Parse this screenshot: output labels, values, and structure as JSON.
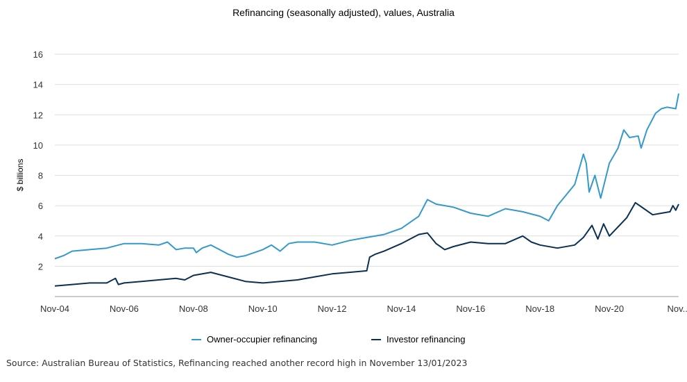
{
  "chart_data": {
    "type": "line",
    "title": "Refinancing (seasonally adjusted), values, Australia",
    "xlabel": "",
    "ylabel": "$ billions",
    "ylim": [
      0,
      16
    ],
    "yticks": [
      2,
      4,
      6,
      8,
      10,
      12,
      14,
      16
    ],
    "grid": true,
    "legend_position": "bottom",
    "x_tick_labels": [
      "Nov-04",
      "Nov-06",
      "Nov-08",
      "Nov-10",
      "Nov-12",
      "Nov-14",
      "Nov-16",
      "Nov-18",
      "Nov-20",
      "Nov..."
    ],
    "x_start": "Nov-04",
    "x_end": "Nov-22",
    "colors": {
      "owner": "#3399cc",
      "investor": "#0a2f52",
      "grid": "#dddddd",
      "axis": "#999999"
    },
    "series": [
      {
        "name": "Owner-occupier refinancing",
        "points": [
          [
            "Nov-04",
            2.5
          ],
          [
            "Feb-05",
            2.7
          ],
          [
            "May-05",
            3.0
          ],
          [
            "Nov-05",
            3.1
          ],
          [
            "May-06",
            3.2
          ],
          [
            "Nov-06",
            3.5
          ],
          [
            "May-07",
            3.5
          ],
          [
            "Nov-07",
            3.4
          ],
          [
            "Feb-08",
            3.6
          ],
          [
            "May-08",
            3.1
          ],
          [
            "Aug-08",
            3.2
          ],
          [
            "Nov-08",
            3.2
          ],
          [
            "Dec-08",
            2.9
          ],
          [
            "Feb-09",
            3.2
          ],
          [
            "May-09",
            3.4
          ],
          [
            "Nov-09",
            2.8
          ],
          [
            "Feb-10",
            2.6
          ],
          [
            "May-10",
            2.7
          ],
          [
            "Nov-10",
            3.1
          ],
          [
            "Feb-11",
            3.4
          ],
          [
            "May-11",
            3.0
          ],
          [
            "Aug-11",
            3.5
          ],
          [
            "Nov-11",
            3.6
          ],
          [
            "May-12",
            3.6
          ],
          [
            "Nov-12",
            3.4
          ],
          [
            "May-13",
            3.7
          ],
          [
            "Nov-13",
            3.9
          ],
          [
            "May-14",
            4.1
          ],
          [
            "Nov-14",
            4.5
          ],
          [
            "May-15",
            5.3
          ],
          [
            "Aug-15",
            6.4
          ],
          [
            "Nov-15",
            6.1
          ],
          [
            "May-16",
            5.9
          ],
          [
            "Nov-16",
            5.5
          ],
          [
            "May-17",
            5.3
          ],
          [
            "Nov-17",
            5.8
          ],
          [
            "May-18",
            5.6
          ],
          [
            "Nov-18",
            5.3
          ],
          [
            "Feb-19",
            5.0
          ],
          [
            "May-19",
            6.0
          ],
          [
            "Nov-19",
            7.4
          ],
          [
            "Feb-20",
            9.4
          ],
          [
            "Mar-20",
            8.8
          ],
          [
            "Apr-20",
            6.9
          ],
          [
            "Jun-20",
            8.0
          ],
          [
            "Aug-20",
            6.5
          ],
          [
            "Nov-20",
            8.8
          ],
          [
            "Feb-21",
            9.8
          ],
          [
            "Apr-21",
            11.0
          ],
          [
            "Jun-21",
            10.5
          ],
          [
            "Sep-21",
            10.6
          ],
          [
            "Oct-21",
            9.8
          ],
          [
            "Dec-21",
            11.0
          ],
          [
            "Mar-22",
            12.1
          ],
          [
            "May-22",
            12.4
          ],
          [
            "Jul-22",
            12.5
          ],
          [
            "Oct-22",
            12.4
          ],
          [
            "Nov-22",
            13.4
          ]
        ]
      },
      {
        "name": "Investor refinancing",
        "points": [
          [
            "Nov-04",
            0.7
          ],
          [
            "May-05",
            0.8
          ],
          [
            "Nov-05",
            0.9
          ],
          [
            "May-06",
            0.9
          ],
          [
            "Aug-06",
            1.2
          ],
          [
            "Sep-06",
            0.8
          ],
          [
            "Nov-06",
            0.9
          ],
          [
            "May-07",
            1.0
          ],
          [
            "Nov-07",
            1.1
          ],
          [
            "May-08",
            1.2
          ],
          [
            "Aug-08",
            1.1
          ],
          [
            "Nov-08",
            1.4
          ],
          [
            "May-09",
            1.6
          ],
          [
            "Nov-09",
            1.3
          ],
          [
            "May-10",
            1.0
          ],
          [
            "Nov-10",
            0.9
          ],
          [
            "May-11",
            1.0
          ],
          [
            "Nov-11",
            1.1
          ],
          [
            "May-12",
            1.3
          ],
          [
            "Nov-12",
            1.5
          ],
          [
            "May-13",
            1.6
          ],
          [
            "Nov-13",
            1.7
          ],
          [
            "Dec-13",
            2.6
          ],
          [
            "Feb-14",
            2.8
          ],
          [
            "May-14",
            3.0
          ],
          [
            "Nov-14",
            3.5
          ],
          [
            "May-15",
            4.1
          ],
          [
            "Aug-15",
            4.2
          ],
          [
            "Nov-15",
            3.5
          ],
          [
            "Feb-16",
            3.1
          ],
          [
            "May-16",
            3.3
          ],
          [
            "Nov-16",
            3.6
          ],
          [
            "May-17",
            3.5
          ],
          [
            "Nov-17",
            3.5
          ],
          [
            "May-18",
            4.0
          ],
          [
            "Aug-18",
            3.6
          ],
          [
            "Nov-18",
            3.4
          ],
          [
            "May-19",
            3.2
          ],
          [
            "Nov-19",
            3.4
          ],
          [
            "Feb-20",
            3.9
          ],
          [
            "May-20",
            4.7
          ],
          [
            "Jul-20",
            3.8
          ],
          [
            "Sep-20",
            4.8
          ],
          [
            "Nov-20",
            4.0
          ],
          [
            "May-21",
            5.2
          ],
          [
            "Aug-21",
            6.2
          ],
          [
            "Nov-21",
            5.8
          ],
          [
            "Feb-22",
            5.4
          ],
          [
            "May-22",
            5.5
          ],
          [
            "Aug-22",
            5.6
          ],
          [
            "Sep-22",
            6.0
          ],
          [
            "Oct-22",
            5.7
          ],
          [
            "Nov-22",
            6.1
          ]
        ]
      }
    ]
  },
  "footer": {
    "source": "Source: Australian Bureau of Statistics, Refinancing reached another record high in November 13/01/2023"
  }
}
